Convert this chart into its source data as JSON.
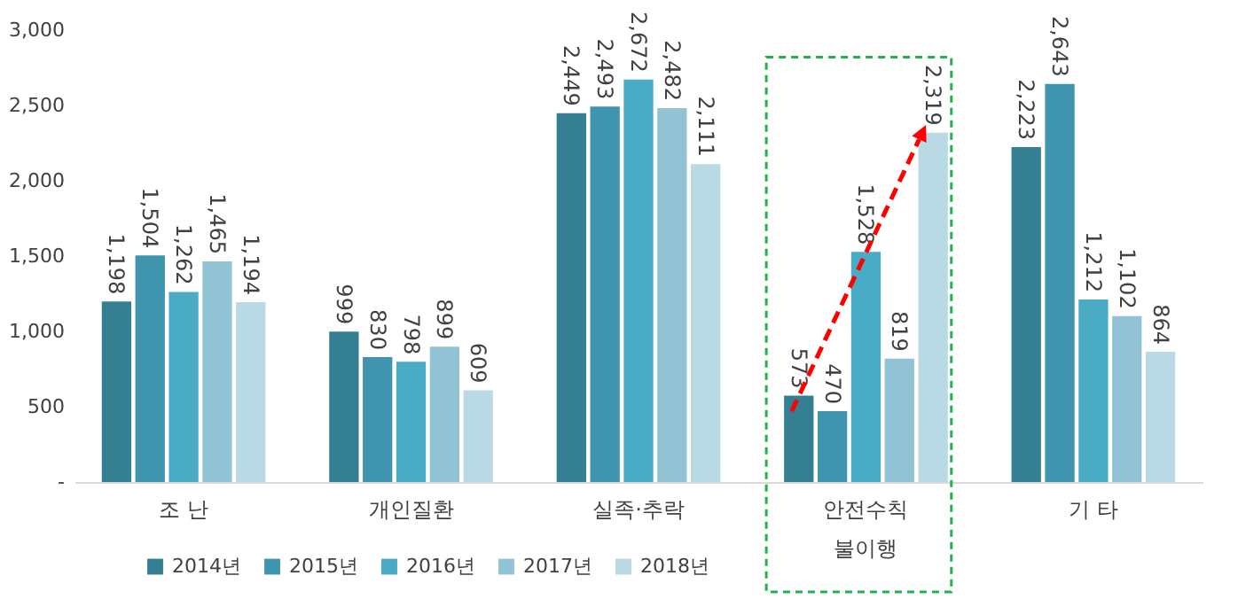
{
  "chart_data": {
    "type": "bar",
    "categories": [
      "조 난",
      "개인질환",
      "실족·추락",
      "안전수칙\n불이행",
      "기 타"
    ],
    "series": [
      {
        "name": "2014년",
        "color": "#357f93",
        "values": [
          1198,
          999,
          2449,
          573,
          2223
        ],
        "value_labels": [
          "1,198",
          "999",
          "2,449",
          "573",
          "2,223"
        ]
      },
      {
        "name": "2015년",
        "color": "#3e95ad",
        "values": [
          1504,
          830,
          2493,
          470,
          2643
        ],
        "value_labels": [
          "1,504",
          "830",
          "2,493",
          "470",
          "2,643"
        ]
      },
      {
        "name": "2016년",
        "color": "#4aabc5",
        "values": [
          1262,
          798,
          2672,
          1528,
          1212
        ],
        "value_labels": [
          "1,262",
          "798",
          "2,672",
          "1,528",
          "1,212"
        ]
      },
      {
        "name": "2017년",
        "color": "#92c3d5",
        "values": [
          1465,
          899,
          2482,
          819,
          1102
        ],
        "value_labels": [
          "1,465",
          "899",
          "2,482",
          "819",
          "1,102"
        ]
      },
      {
        "name": "2018년",
        "color": "#b9d9e5",
        "values": [
          1194,
          609,
          2111,
          2319,
          864
        ],
        "value_labels": [
          "1,194",
          "609",
          "2,111",
          "2,319",
          "864"
        ]
      }
    ],
    "ylim": [
      0,
      3000
    ],
    "yticks": [
      {
        "value": 0,
        "label": "-"
      },
      500,
      {
        "value": 1000,
        "label": "1,000"
      },
      {
        "value": 1500,
        "label": "1,500"
      },
      {
        "value": 2000,
        "label": "2,000"
      },
      {
        "value": 2500,
        "label": "2,500"
      },
      {
        "value": 3000,
        "label": "3,000"
      }
    ],
    "grid": false,
    "legend": "bottom"
  }
}
